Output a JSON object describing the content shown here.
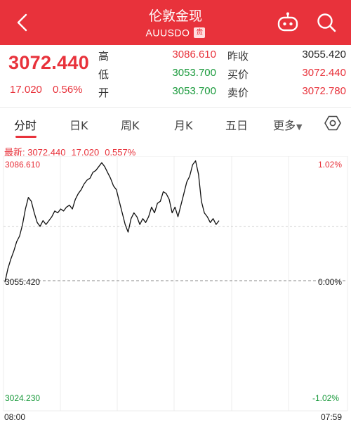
{
  "header": {
    "title": "伦敦金现",
    "code": "AUUSDO",
    "badge": "贵"
  },
  "quote": {
    "last": "3072.440",
    "change": "17.020",
    "change_pct": "0.56%",
    "stats": [
      {
        "label": "高",
        "value": "3086.610",
        "color": "red"
      },
      {
        "label": "低",
        "value": "3053.700",
        "color": "green"
      },
      {
        "label": "开",
        "value": "3053.700",
        "color": "green"
      },
      {
        "label": "昨收",
        "value": "3055.420",
        "color": "dark"
      },
      {
        "label": "买价",
        "value": "3072.440",
        "color": "red"
      },
      {
        "label": "卖价",
        "value": "3072.780",
        "color": "red"
      }
    ]
  },
  "tabs": [
    "分时",
    "日K",
    "周K",
    "月K",
    "五日",
    "更多"
  ],
  "latest": {
    "label": "最新: 3072.440",
    "change": "17.020",
    "pct": "0.557%"
  },
  "chart_data": {
    "type": "line",
    "x_start": "08:00",
    "x_end": "07:59",
    "y_max_label": "3086.610",
    "y_mid_label": "3055.420",
    "y_min_label": "3024.230",
    "pct_max_label": "1.02%",
    "pct_mid_label": "0.00%",
    "pct_min_label": "-1.02%",
    "ylim": [
      3024.23,
      3086.61
    ],
    "prev_close": 3055.42,
    "avg_price": 3069.5,
    "series": [
      {
        "values": [
          3055.0,
          3058.5,
          3061.0,
          3063.0,
          3065.5,
          3067.0,
          3070.0,
          3074.0,
          3077.0,
          3076.0,
          3073.0,
          3070.5,
          3069.5,
          3071.0,
          3070.0,
          3071.0,
          3072.0,
          3073.5,
          3073.0,
          3074.0,
          3073.5,
          3074.5,
          3075.0,
          3074.0,
          3076.5,
          3078.0,
          3079.0,
          3080.5,
          3081.5,
          3082.0,
          3083.5,
          3084.0,
          3085.0,
          3086.0,
          3085.0,
          3083.5,
          3082.0,
          3080.0,
          3079.0,
          3076.0,
          3073.0,
          3070.0,
          3068.0,
          3071.5,
          3073.0,
          3072.0,
          3070.0,
          3071.5,
          3070.5,
          3072.0,
          3074.5,
          3073.0,
          3075.5,
          3076.0,
          3078.5,
          3078.0,
          3076.5,
          3073.0,
          3074.5,
          3072.0,
          3075.0,
          3078.0,
          3081.0,
          3082.5,
          3085.5,
          3086.5,
          3083.0,
          3076.0,
          3073.0,
          3072.0,
          3070.5,
          3071.5,
          3070.0,
          3071.0
        ]
      }
    ]
  }
}
